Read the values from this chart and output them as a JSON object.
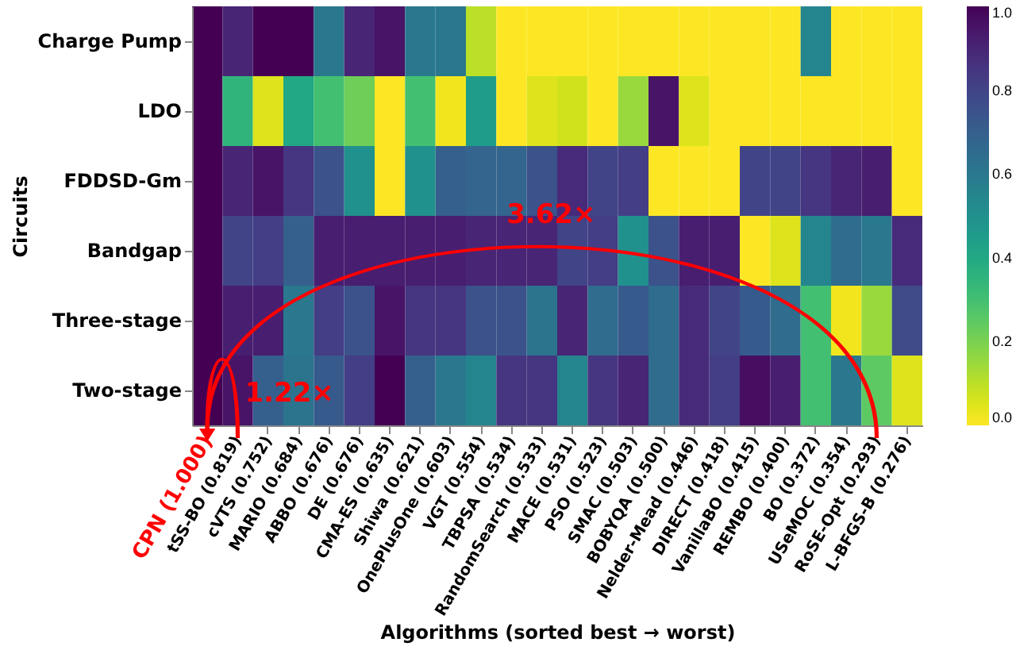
{
  "chart_data": {
    "type": "heatmap",
    "xlabel": "Algorithms (sorted best → worst)",
    "ylabel": "Circuits",
    "categories": [
      "CPN (1.000)",
      "tSS-BO (0.819)",
      "cVTS (0.752)",
      "MARIO (0.684)",
      "ABBO (0.676)",
      "DE (0.676)",
      "CMA-ES (0.635)",
      "Shiwa (0.621)",
      "OnePlusOne (0.603)",
      "VGT (0.554)",
      "TBPSA (0.534)",
      "RandomSearch (0.533)",
      "MACE (0.531)",
      "PSO (0.523)",
      "SMAC (0.503)",
      "BOBYQA (0.500)",
      "Nelder-Mead (0.446)",
      "DIRECT (0.418)",
      "VanillaBO (0.415)",
      "REMBO (0.400)",
      "BO (0.372)",
      "USeMOC (0.354)",
      "RoSE-Opt (0.293)",
      "L-BFGS-B (0.276)"
    ],
    "y_categories": [
      "Charge Pump",
      "LDO",
      "FDDSD-Gm",
      "Bandgap",
      "Three-stage",
      "Two-stage"
    ],
    "cells": [
      [
        1.0,
        0.9,
        1.0,
        1.0,
        0.6,
        0.9,
        0.95,
        0.6,
        0.6,
        0.1,
        0.0,
        0.0,
        0.0,
        0.0,
        0.0,
        0.0,
        0.0,
        0.0,
        0.0,
        0.0,
        0.55,
        0.0,
        0.0,
        0.0
      ],
      [
        1.0,
        0.35,
        0.05,
        0.4,
        0.3,
        0.22,
        0.0,
        0.3,
        0.02,
        0.45,
        0.0,
        0.05,
        0.07,
        0.0,
        0.15,
        0.95,
        0.05,
        0.0,
        0.0,
        0.0,
        0.0,
        0.0,
        0.0,
        0.0
      ],
      [
        1.0,
        0.9,
        0.95,
        0.85,
        0.75,
        0.5,
        0.0,
        0.5,
        0.7,
        0.68,
        0.68,
        0.75,
        0.88,
        0.8,
        0.82,
        0.0,
        0.0,
        0.0,
        0.8,
        0.8,
        0.85,
        0.9,
        0.92,
        0.0
      ],
      [
        1.0,
        0.8,
        0.82,
        0.7,
        0.92,
        0.92,
        0.92,
        0.92,
        0.92,
        0.9,
        0.9,
        0.9,
        0.8,
        0.82,
        0.5,
        0.75,
        0.92,
        0.92,
        0.0,
        0.05,
        0.55,
        0.65,
        0.6,
        0.88
      ],
      [
        1.0,
        0.92,
        0.92,
        0.6,
        0.82,
        0.75,
        0.95,
        0.85,
        0.85,
        0.75,
        0.75,
        0.62,
        0.9,
        0.65,
        0.72,
        0.65,
        0.88,
        0.8,
        0.72,
        0.65,
        0.3,
        0.02,
        0.15,
        0.78
      ],
      [
        1.0,
        0.95,
        0.7,
        0.62,
        0.72,
        0.82,
        1.0,
        0.7,
        0.6,
        0.55,
        0.85,
        0.85,
        0.55,
        0.85,
        0.9,
        0.65,
        0.88,
        0.82,
        0.97,
        0.92,
        0.3,
        0.6,
        0.25,
        0.05
      ]
    ],
    "clim": [
      0,
      1
    ],
    "cticks": [
      {
        "value": 0,
        "label": "0.0"
      },
      0.2,
      0.4,
      0.6,
      0.8,
      {
        "value": 1,
        "label": "1.0"
      }
    ],
    "annotations": [
      "3.62×",
      "1.22×"
    ]
  }
}
